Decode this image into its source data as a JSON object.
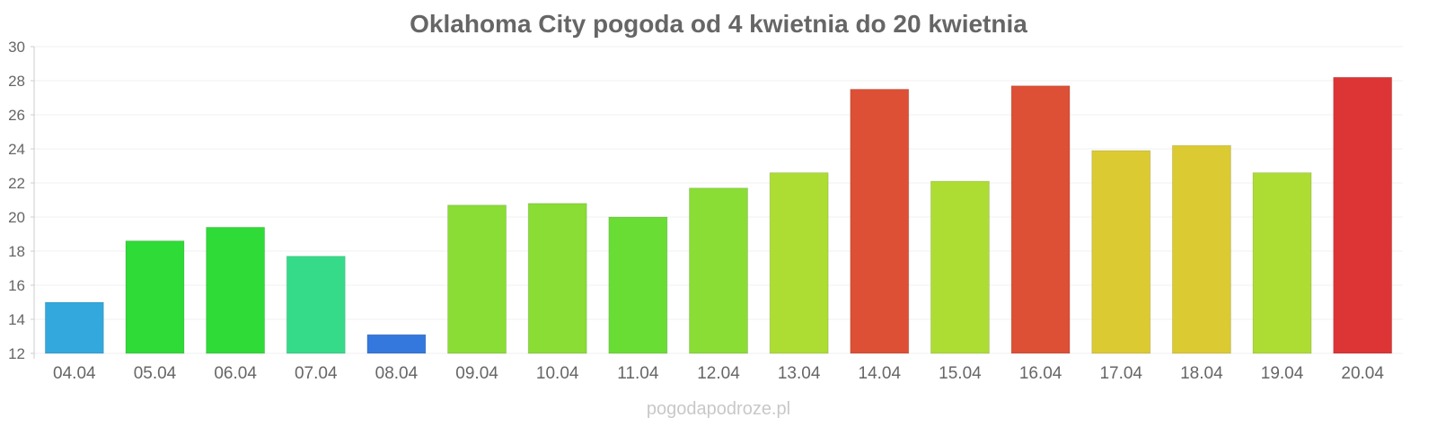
{
  "chart_data": {
    "type": "bar",
    "title": "Oklahoma City pogoda od 4 kwietnia do 20 kwietnia",
    "xlabel": "",
    "ylabel": "",
    "ylim": [
      12,
      30
    ],
    "yticks": [
      12,
      14,
      16,
      18,
      20,
      22,
      24,
      26,
      28,
      30
    ],
    "grid": true,
    "categories": [
      "04.04",
      "05.04",
      "06.04",
      "07.04",
      "08.04",
      "09.04",
      "10.04",
      "11.04",
      "12.04",
      "13.04",
      "14.04",
      "15.04",
      "16.04",
      "17.04",
      "18.04",
      "19.04",
      "20.04"
    ],
    "values": [
      15.0,
      18.6,
      19.4,
      17.7,
      13.1,
      20.7,
      20.8,
      20.0,
      21.7,
      22.6,
      27.5,
      22.1,
      27.7,
      23.9,
      24.2,
      22.6,
      28.2
    ],
    "colors": [
      "#33a8dd",
      "#2fdb37",
      "#2fdb37",
      "#36db8a",
      "#3578dd",
      "#8add35",
      "#8add35",
      "#6add35",
      "#8add35",
      "#addd33",
      "#dd5035",
      "#addd33",
      "#dd5035",
      "#dcca33",
      "#dcca33",
      "#addd33",
      "#dd3535"
    ]
  },
  "watermark": "pogodapodroze.pl"
}
